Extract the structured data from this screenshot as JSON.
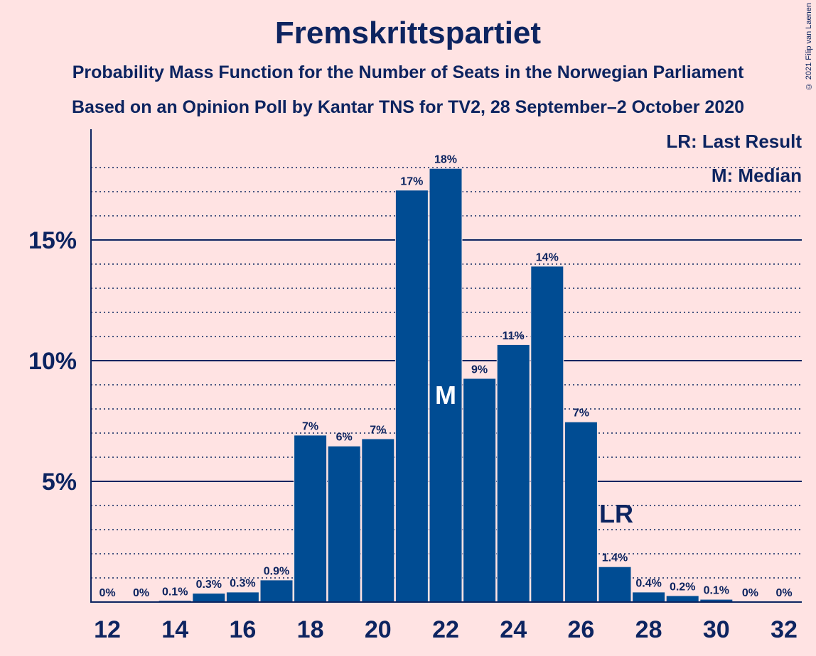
{
  "title": "Fremskrittspartiet",
  "subtitle1": "Probability Mass Function for the Number of Seats in the Norwegian Parliament",
  "subtitle2": "Based on an Opinion Poll by Kantar TNS for TV2, 28 September–2 October 2020",
  "copyright": "© 2021 Filip van Laenen",
  "legend": {
    "lr": "LR: Last Result",
    "m": "M: Median"
  },
  "colors": {
    "background": "#ffe3e3",
    "bar": "#004c93",
    "text": "#0d2460"
  },
  "chart_data": {
    "type": "bar",
    "categories": [
      12,
      13,
      14,
      15,
      16,
      17,
      18,
      19,
      20,
      21,
      22,
      23,
      24,
      25,
      26,
      27,
      28,
      29,
      30,
      31,
      32
    ],
    "values": [
      0,
      0,
      0.1,
      0.3,
      0.3,
      0.9,
      7,
      6,
      7,
      17,
      18,
      9,
      11,
      14,
      7,
      1.4,
      0.4,
      0.2,
      0.1,
      0,
      0
    ],
    "value_estimates": [
      0,
      0,
      0.05,
      0.35,
      0.4,
      0.9,
      6.9,
      6.45,
      6.75,
      17.05,
      17.95,
      9.25,
      10.65,
      13.9,
      7.45,
      1.45,
      0.4,
      0.25,
      0.1,
      0,
      0
    ],
    "bar_labels": [
      "0%",
      "0%",
      "0.1%",
      "0.3%",
      "0.3%",
      "0.9%",
      "7%",
      "6%",
      "7%",
      "17%",
      "18%",
      "9%",
      "11%",
      "14%",
      "7%",
      "1.4%",
      "0.4%",
      "0.2%",
      "0.1%",
      "0%",
      "0%"
    ],
    "x_tick_labels": [
      "12",
      "14",
      "16",
      "18",
      "20",
      "22",
      "24",
      "26",
      "28",
      "30",
      "32"
    ],
    "y_ticks": [
      5,
      10,
      15
    ],
    "y_tick_labels": [
      "5%",
      "10%",
      "15%"
    ],
    "ylim": [
      0,
      19.5
    ],
    "median_seat": 22,
    "median_label": "M",
    "last_result_seat": 27,
    "last_result_label": "LR",
    "grid": true,
    "legend_placement": "top-right"
  }
}
